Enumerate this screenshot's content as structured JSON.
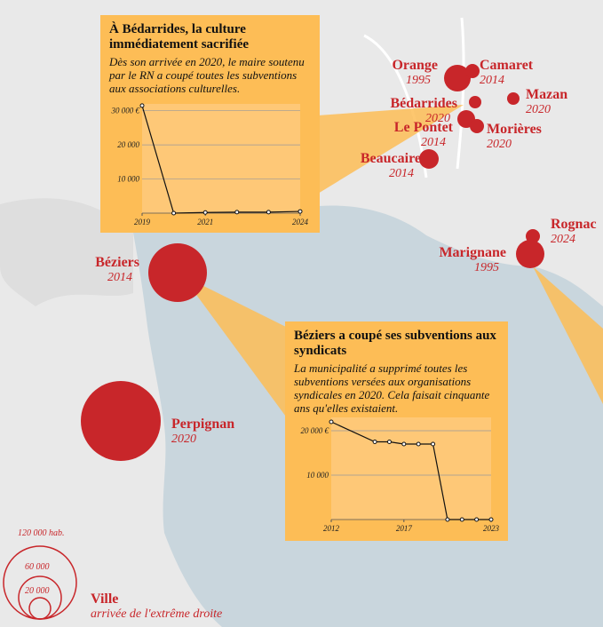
{
  "cities": [
    {
      "name": "Orange",
      "year": "1995"
    },
    {
      "name": "Camaret",
      "year": "2014"
    },
    {
      "name": "Bédarrides",
      "year": "2020"
    },
    {
      "name": "Mazan",
      "year": "2020"
    },
    {
      "name": "Le Pontet",
      "year": "2014"
    },
    {
      "name": "Morières",
      "year": "2020"
    },
    {
      "name": "Beaucaire",
      "year": "2014"
    },
    {
      "name": "Rognac",
      "year": "2024"
    },
    {
      "name": "Marignane",
      "year": "1995"
    },
    {
      "name": "Béziers",
      "year": "2014"
    },
    {
      "name": "Perpignan",
      "year": "2020"
    }
  ],
  "insets": [
    {
      "title": "À Bédarrides, la culture immédiatement sacrifiée",
      "text": "Dès son arrivée en 2020, le maire soutenu par le RN a coupé toutes les subventions aux associations culturelles.",
      "chart_data": {
        "type": "line",
        "x": [
          2019,
          2020,
          2021,
          2022,
          2023,
          2024
        ],
        "values": [
          31500,
          0,
          200,
          300,
          300,
          500
        ],
        "xlim": [
          2019,
          2024
        ],
        "ylim": [
          0,
          32000
        ],
        "xticks": [
          2019,
          2021,
          2024
        ],
        "yticks": [
          {
            "value": 10000,
            "label": "10 000"
          },
          {
            "value": 20000,
            "label": "20 000"
          },
          {
            "value": 30000,
            "label": "30 000 €"
          }
        ],
        "color": "#111111",
        "grid": true
      }
    },
    {
      "title": "Béziers a coupé ses subventions aux syndicats",
      "text": "La municipalité a supprimé toutes les subventions versées aux organisations syndicales en 2020. Cela faisait cinquante ans qu'elles existaient.",
      "chart_data": {
        "type": "line",
        "x": [
          2012,
          2015,
          2016,
          2017,
          2018,
          2019,
          2020,
          2021,
          2022,
          2023
        ],
        "values": [
          22000,
          17500,
          17500,
          17000,
          17000,
          17000,
          0,
          0,
          0,
          0
        ],
        "xlim": [
          2012,
          2023
        ],
        "ylim": [
          0,
          23000
        ],
        "xticks": [
          2012,
          2017,
          2023
        ],
        "yticks": [
          {
            "value": 10000,
            "label": "10 000"
          },
          {
            "value": 20000,
            "label": "20 000 €"
          }
        ],
        "color": "#111111",
        "grid": true
      }
    }
  ],
  "legend": {
    "sizes": [
      "120 000 hab.",
      "60 000",
      "20 000"
    ],
    "title": "Ville",
    "subtitle": "arrivée de l'extrême droite"
  }
}
